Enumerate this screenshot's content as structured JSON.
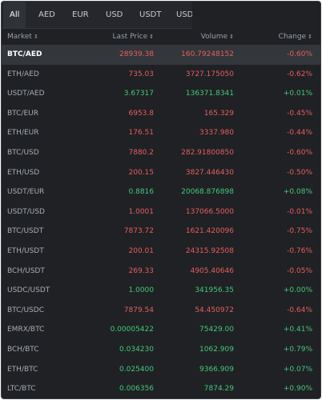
{
  "tabs": [
    "All",
    "AED",
    "EUR",
    "USD",
    "USDT",
    "USDC"
  ],
  "colors": {
    "up": "#46c87a",
    "down": "#e65e60"
  },
  "header": {
    "market": "Market",
    "last_price": "Last Price",
    "volume": "Volume",
    "change": "Change",
    "sort_icon": "sort-icon"
  },
  "rows": [
    {
      "market": "BTC/AED",
      "price": "28939.38",
      "volume": "160.79248152",
      "change": "-0.60%",
      "dir": "down",
      "selected": true
    },
    {
      "market": "ETH/AED",
      "price": "735.03",
      "volume": "3727.175050",
      "change": "-0.62%",
      "dir": "down"
    },
    {
      "market": "USDT/AED",
      "price": "3.67317",
      "volume": "136371.8341",
      "change": "+0.01%",
      "dir": "up"
    },
    {
      "market": "BTC/EUR",
      "price": "6953.8",
      "volume": "165.329",
      "change": "-0.45%",
      "dir": "down"
    },
    {
      "market": "ETH/EUR",
      "price": "176.51",
      "volume": "3337.980",
      "change": "-0.44%",
      "dir": "down"
    },
    {
      "market": "BTC/USD",
      "price": "7880.2",
      "volume": "282.91800850",
      "change": "-0.60%",
      "dir": "down"
    },
    {
      "market": "ETH/USD",
      "price": "200.15",
      "volume": "3827.446430",
      "change": "-0.50%",
      "dir": "down"
    },
    {
      "market": "USDT/EUR",
      "price": "0.8816",
      "volume": "20068.876898",
      "change": "+0.08%",
      "dir": "up"
    },
    {
      "market": "USDT/USD",
      "price": "1.0001",
      "volume": "137066.5000",
      "change": "-0.01%",
      "dir": "down"
    },
    {
      "market": "BTC/USDT",
      "price": "7873.72",
      "volume": "1621.420096",
      "change": "-0.75%",
      "dir": "down"
    },
    {
      "market": "ETH/USDT",
      "price": "200.01",
      "volume": "24315.92508",
      "change": "-0.76%",
      "dir": "down"
    },
    {
      "market": "BCH/USDT",
      "price": "269.33",
      "volume": "4905.40646",
      "change": "-0.05%",
      "dir": "down"
    },
    {
      "market": "USDC/USDT",
      "price": "1.0000",
      "volume": "341956.35",
      "change": "+0.00%",
      "dir": "up"
    },
    {
      "market": "BTC/USDC",
      "price": "7879.54",
      "volume": "54.450972",
      "change": "-0.64%",
      "dir": "down"
    },
    {
      "market": "EMRX/BTC",
      "price": "0.00005422",
      "volume": "75429.00",
      "change": "+0.41%",
      "dir": "up"
    },
    {
      "market": "BCH/BTC",
      "price": "0.034230",
      "volume": "1062.909",
      "change": "+0.79%",
      "dir": "up"
    },
    {
      "market": "ETH/BTC",
      "price": "0.025400",
      "volume": "9366.909",
      "change": "+0.07%",
      "dir": "up"
    },
    {
      "market": "LTC/BTC",
      "price": "0.006356",
      "volume": "7874.29",
      "change": "+0.90%",
      "dir": "up"
    }
  ]
}
